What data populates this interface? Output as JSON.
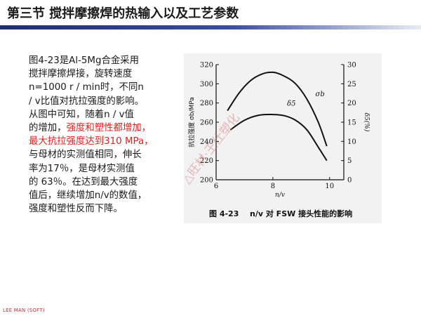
{
  "header": {
    "title": "第三节  搅拌摩擦焊的热输入以及工艺参数"
  },
  "body": {
    "lines": [
      "图4-23是Al-5Mg合金采用",
      "搅拌摩擦焊接，旋转速度",
      "n=1000 r / min时，不同n",
      "/ v比值对抗拉强度的影响。",
      "从图中可知，随着n / v值",
      "的增加，",
      "强度和塑性都增加，",
      "最大抗拉强度达到310 MPa，",
      "与母材的实测值相同，伸长",
      "率为17％，是母材实测值",
      "的 63％。在达到最大强度",
      "值后，继续增加n/v的数值，",
      "强度和塑性反而下降。"
    ]
  },
  "figure": {
    "caption_num": "图 4-23",
    "caption_text": "n/v 对 FSW 接头性能的影响",
    "watermark": "△旺材·王仕塑化"
  },
  "footer": {
    "tag": "LEE MAN (SOFT)"
  },
  "colors": {
    "header_line_dark": "#1f2f6b",
    "highlight": "#e02020",
    "figure_bg": "#f2f2f2"
  },
  "chart_data": {
    "type": "line",
    "xlabel": "n/v",
    "x_ticks": [
      "6",
      "8",
      "10"
    ],
    "xlim": [
      6,
      10.5
    ],
    "ylabel_left": "抗拉强度 σb/MPa",
    "ylim_left": [
      200,
      320
    ],
    "yticks_left": [
      "200",
      "220",
      "240",
      "260",
      "280",
      "300",
      "320"
    ],
    "ylabel_right": "δ5(%)",
    "ylim_right": [
      0,
      30
    ],
    "yticks_right": [
      "0",
      "5",
      "10",
      "15",
      "20",
      "25",
      "30"
    ],
    "series": [
      {
        "name": "σb",
        "axis": "left",
        "x": [
          6.4,
          6.8,
          7.2,
          7.6,
          8.0,
          8.4,
          8.8,
          9.2,
          9.6,
          9.9
        ],
        "y": [
          272,
          290,
          303,
          310,
          312,
          308,
          300,
          284,
          260,
          235
        ]
      },
      {
        "name": "δ5",
        "axis": "right",
        "x": [
          6.5,
          7.0,
          7.5,
          8.0,
          8.4,
          8.8,
          9.2,
          9.6,
          9.9
        ],
        "y": [
          13.0,
          15.5,
          16.8,
          17.0,
          16.7,
          15.5,
          13.0,
          8.5,
          5.0
        ]
      }
    ],
    "labels": {
      "sigma": "σb",
      "delta": "δ5"
    },
    "grid": false
  }
}
